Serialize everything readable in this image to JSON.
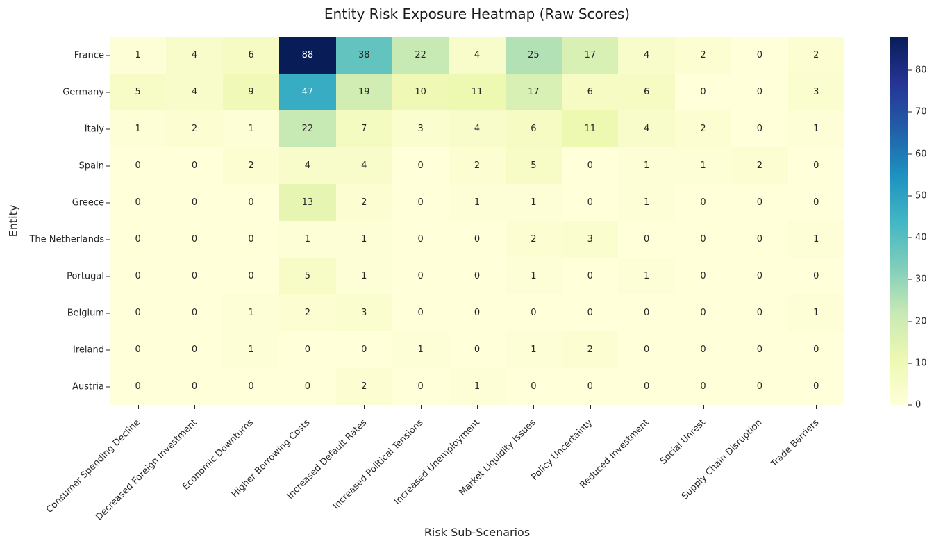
{
  "chart_data": {
    "type": "heatmap",
    "title": "Entity Risk Exposure Heatmap (Raw Scores)",
    "xlabel": "Risk Sub-Scenarios",
    "ylabel": "Entity",
    "columns": [
      "Consumer Spending Decline",
      "Decreased Foreign Investment",
      "Economic Downturns",
      "Higher Borrowing Costs",
      "Increased Default Rates",
      "Increased Political Tensions",
      "Increased Unemployment",
      "Market Liquidity Issues",
      "Policy Uncertainty",
      "Reduced Investment",
      "Social Unrest",
      "Supply Chain Disruption",
      "Trade Barriers"
    ],
    "rows": [
      "France",
      "Germany",
      "Italy",
      "Spain",
      "Greece",
      "The Netherlands",
      "Portugal",
      "Belgium",
      "Ireland",
      "Austria"
    ],
    "values": [
      [
        1,
        4,
        6,
        88,
        38,
        22,
        4,
        25,
        17,
        4,
        2,
        0,
        2
      ],
      [
        5,
        4,
        9,
        47,
        19,
        10,
        11,
        17,
        6,
        6,
        0,
        0,
        3
      ],
      [
        1,
        2,
        1,
        22,
        7,
        3,
        4,
        6,
        11,
        4,
        2,
        0,
        1
      ],
      [
        0,
        0,
        2,
        4,
        4,
        0,
        2,
        5,
        0,
        1,
        1,
        2,
        0
      ],
      [
        0,
        0,
        0,
        13,
        2,
        0,
        1,
        1,
        0,
        1,
        0,
        0,
        0
      ],
      [
        0,
        0,
        0,
        1,
        1,
        0,
        0,
        2,
        3,
        0,
        0,
        0,
        1
      ],
      [
        0,
        0,
        0,
        5,
        1,
        0,
        0,
        1,
        0,
        1,
        0,
        0,
        0
      ],
      [
        0,
        0,
        1,
        2,
        3,
        0,
        0,
        0,
        0,
        0,
        0,
        0,
        1
      ],
      [
        0,
        0,
        1,
        0,
        0,
        1,
        0,
        1,
        2,
        0,
        0,
        0,
        0
      ],
      [
        0,
        0,
        0,
        0,
        2,
        0,
        1,
        0,
        0,
        0,
        0,
        0,
        0
      ]
    ],
    "vmin": 0,
    "vmax": 88,
    "annotated": true,
    "grid": false,
    "colormap": "YlGnBu",
    "colormap_stops": [
      "#ffffd9",
      "#edf8b1",
      "#c7e9b4",
      "#7fcdbb",
      "#41b6c4",
      "#1d91c0",
      "#225ea8",
      "#253494",
      "#081d58"
    ],
    "colorbar_ticks": [
      0,
      10,
      20,
      30,
      40,
      50,
      60,
      70,
      80
    ],
    "legend_position": "right-colorbar",
    "colors": {
      "annotation_dark": "#262626",
      "annotation_light": "#ffffff",
      "tick": "#262626",
      "title": "#1a1a1a",
      "background": "#ffffff"
    }
  }
}
